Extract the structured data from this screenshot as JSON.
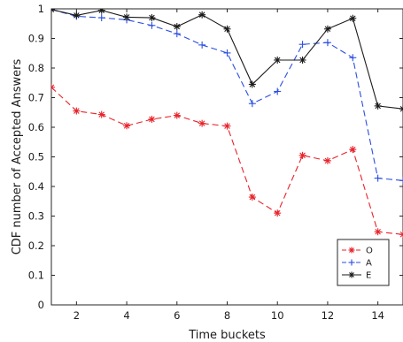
{
  "chart_data": {
    "type": "line",
    "title": "",
    "xlabel": "Time buckets",
    "ylabel": "CDF number of Accepted Answers",
    "xlim": [
      1,
      15
    ],
    "ylim": [
      0,
      1
    ],
    "x_ticks": [
      2,
      4,
      6,
      8,
      10,
      12,
      14
    ],
    "y_ticks": [
      0,
      0.1,
      0.2,
      0.3,
      0.4,
      0.5,
      0.6,
      0.7,
      0.8,
      0.9,
      1
    ],
    "grid": false,
    "legend_position": "bottom-right",
    "x": [
      1,
      2,
      3,
      4,
      5,
      6,
      7,
      8,
      9,
      10,
      11,
      12,
      13,
      14,
      15
    ],
    "series": [
      {
        "name": "O",
        "color": "#e8222a",
        "line_style": "dashed",
        "marker": "asterisk",
        "values": [
          0.735,
          0.655,
          0.643,
          0.605,
          0.627,
          0.64,
          0.613,
          0.604,
          0.364,
          0.31,
          0.505,
          0.487,
          0.525,
          0.247,
          0.238
        ]
      },
      {
        "name": "A",
        "color": "#2a4ee0",
        "line_style": "dashed",
        "marker": "plus",
        "values": [
          0.998,
          0.975,
          0.97,
          0.963,
          0.944,
          0.916,
          0.878,
          0.851,
          0.68,
          0.721,
          0.88,
          0.886,
          0.835,
          0.428,
          0.42
        ]
      },
      {
        "name": "E",
        "color": "#1a1a1a",
        "line_style": "solid",
        "marker": "asterisk",
        "values": [
          0.998,
          0.978,
          0.995,
          0.972,
          0.97,
          0.94,
          0.98,
          0.932,
          0.745,
          0.827,
          0.827,
          0.932,
          0.968,
          0.672,
          0.662
        ]
      }
    ]
  }
}
